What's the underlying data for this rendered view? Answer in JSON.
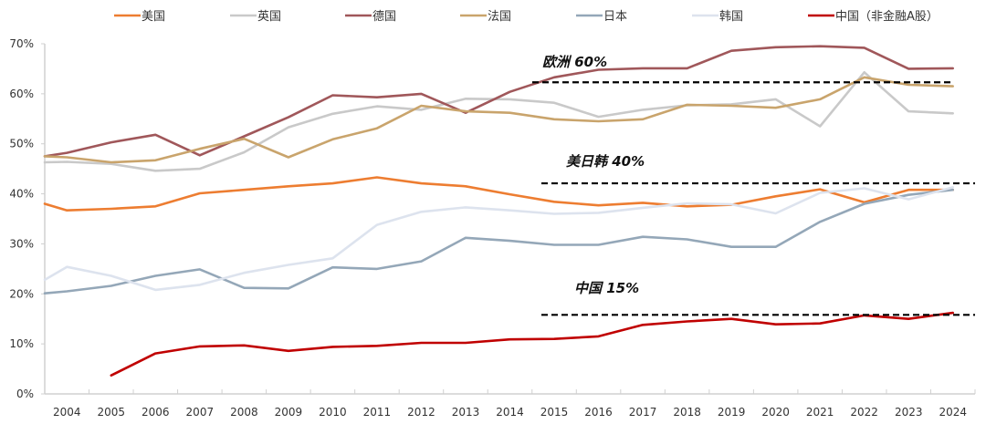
{
  "chart_data": {
    "type": "line",
    "title": "",
    "xlabel": "",
    "ylabel": "",
    "ylim": [
      0,
      70
    ],
    "yticks": [
      "0%",
      "10%",
      "20%",
      "30%",
      "40%",
      "50%",
      "60%",
      "70%"
    ],
    "ytick_values": [
      0,
      10,
      20,
      30,
      40,
      50,
      60,
      70
    ],
    "grid": false,
    "legend_position": "top",
    "categories": [
      "2004",
      "2005",
      "2006",
      "2007",
      "2008",
      "2009",
      "2010",
      "2011",
      "2012",
      "2013",
      "2014",
      "2015",
      "2016",
      "2017",
      "2018",
      "2019",
      "2020",
      "2021",
      "2022",
      "2023",
      "2024"
    ],
    "note": "each series also has a leading point drawn at the left axis edge (start value)",
    "series": [
      {
        "name": "美国",
        "color": "#ED7D31",
        "start": 38.0,
        "values": [
          36.7,
          37.0,
          37.5,
          40.1,
          40.8,
          41.5,
          42.1,
          43.3,
          42.1,
          41.5,
          39.9,
          38.4,
          37.7,
          38.2,
          37.5,
          37.8,
          39.5,
          40.9,
          38.3,
          40.8,
          40.8
        ]
      },
      {
        "name": "英国",
        "color": "#C9C9C9",
        "start": 46.3,
        "values": [
          46.4,
          46.0,
          44.6,
          45.0,
          48.3,
          53.3,
          56.0,
          57.5,
          56.8,
          59.0,
          58.9,
          58.2,
          55.4,
          56.8,
          57.7,
          57.9,
          58.9,
          53.5,
          64.3,
          56.5,
          56.1
        ]
      },
      {
        "name": "德国",
        "color": "#A0575A",
        "start": 47.5,
        "values": [
          48.2,
          50.3,
          51.8,
          47.7,
          51.5,
          55.3,
          59.7,
          59.3,
          60.0,
          56.2,
          60.4,
          63.3,
          64.8,
          65.1,
          65.1,
          68.6,
          69.3,
          69.5,
          69.2,
          65.0,
          65.1
        ]
      },
      {
        "name": "法国",
        "color": "#C9A46C",
        "start": 47.5,
        "values": [
          47.3,
          46.3,
          46.7,
          49.0,
          51.0,
          47.3,
          50.9,
          53.1,
          57.6,
          56.5,
          56.2,
          54.9,
          54.5,
          54.9,
          57.8,
          57.6,
          57.2,
          58.9,
          63.3,
          61.8,
          61.5
        ]
      },
      {
        "name": "日本",
        "color": "#94A7B8",
        "start": 20.1,
        "values": [
          20.5,
          21.6,
          23.6,
          24.9,
          21.2,
          21.1,
          25.3,
          25.0,
          26.5,
          31.2,
          30.6,
          29.8,
          29.8,
          31.4,
          30.9,
          29.4,
          29.4,
          34.4,
          38.0,
          39.8,
          40.8
        ]
      },
      {
        "name": "韩国",
        "color": "#DDE3EE",
        "start": 22.8,
        "values": [
          25.4,
          23.6,
          20.8,
          21.8,
          24.2,
          25.8,
          27.1,
          33.8,
          36.4,
          37.3,
          36.7,
          36.0,
          36.2,
          37.2,
          38.1,
          37.9,
          36.1,
          40.2,
          41.1,
          38.9,
          41.3
        ]
      },
      {
        "name": "中国（非金融A股）",
        "color": "#C00000",
        "start": null,
        "values": [
          null,
          3.7,
          8.1,
          9.5,
          9.7,
          8.6,
          9.4,
          9.6,
          10.2,
          10.2,
          10.9,
          11.0,
          11.5,
          13.8,
          14.5,
          15.0,
          13.9,
          14.1,
          15.7,
          15.0,
          16.2
        ]
      }
    ],
    "reference_lines": [
      {
        "label": "欧洲 60%",
        "value": 62.3,
        "from": "2015",
        "to": "2024"
      },
      {
        "label": "美日韩 40%",
        "value": 42.1,
        "from": "2015",
        "to": "2024"
      },
      {
        "label": "中国 15%",
        "value": 15.8,
        "from": "2015",
        "to": "2024"
      }
    ]
  }
}
